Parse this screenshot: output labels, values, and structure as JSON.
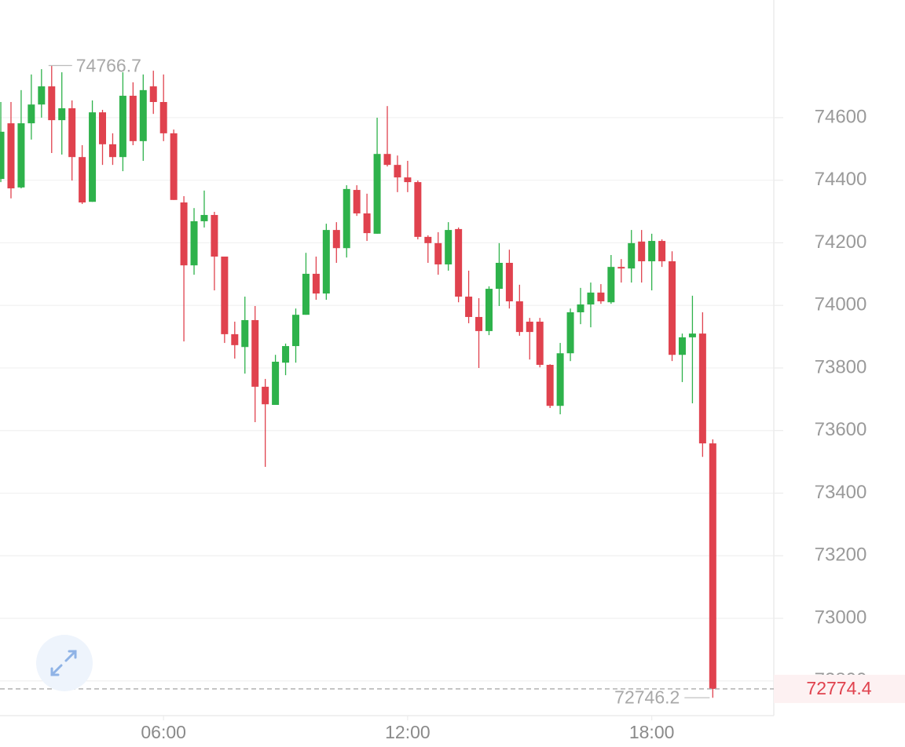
{
  "chart_data": {
    "type": "candlestick",
    "x": [
      2,
      2.25,
      2.5,
      2.75,
      3,
      3.25,
      3.5,
      3.75,
      4,
      4.25,
      4.5,
      4.75,
      5,
      5.25,
      5.5,
      5.75,
      6,
      6.25,
      6.5,
      6.75,
      7,
      7.25,
      7.5,
      7.75,
      8,
      8.25,
      8.5,
      8.75,
      9,
      9.25,
      9.5,
      9.75,
      10,
      10.25,
      10.5,
      10.75,
      11,
      11.25,
      11.5,
      11.75,
      12,
      12.25,
      12.5,
      12.75,
      13,
      13.25,
      13.5,
      13.75,
      14,
      14.25,
      14.5,
      14.75,
      15,
      15.25,
      15.5,
      15.75,
      16,
      16.25,
      16.5,
      16.75,
      17,
      17.25,
      17.5,
      17.75,
      18,
      18.25,
      18.5,
      18.75,
      19,
      19.25,
      19.5
    ],
    "open": [
      74404,
      74582,
      74377,
      74582,
      74642,
      74700,
      74592,
      74630,
      74474,
      74331,
      74617,
      74515,
      74474,
      74670,
      74525,
      74700,
      74650,
      74550,
      74329,
      74128,
      74269,
      74289,
      74156,
      73908,
      73867,
      73953,
      73740,
      73682,
      73817,
      73870,
      73970,
      74101,
      74038,
      74241,
      74183,
      74369,
      74294,
      74229,
      74484,
      74449,
      74409,
      74394,
      74219,
      74199,
      74131,
      74244,
      74028,
      73963,
      73918,
      74053,
      74136,
      74013,
      73948,
      73948,
      73810,
      73679,
      73847,
      73978,
      74003,
      74041,
      74010,
      74123,
      74118,
      74204,
      74141,
      74206,
      74141,
      73842,
      73898,
      73910,
      73559
    ],
    "high": [
      74650,
      74650,
      74688,
      74738,
      74755,
      74766.7,
      74745,
      74655,
      74512,
      74655,
      74625,
      74550,
      74745,
      74713,
      74738,
      74750,
      74738,
      74562,
      74349,
      74311,
      74367,
      74299,
      74156,
      73948,
      74028,
      73998,
      73765,
      73842,
      73878,
      73990,
      74168,
      74156,
      74261,
      74266,
      74384,
      74384,
      74357,
      74600,
      74637,
      74479,
      74462,
      74399,
      74224,
      74234,
      74266,
      74249,
      74111,
      74023,
      74061,
      74199,
      74178,
      74066,
      73960,
      73960,
      73812,
      73880,
      73990,
      74056,
      74073,
      74068,
      74161,
      74148,
      74241,
      74241,
      74229,
      74211,
      74173,
      73910,
      74031,
      73978,
      73572
    ],
    "low": [
      74394,
      74342,
      74374,
      74530,
      74600,
      74487,
      74482,
      74399,
      74324,
      74331,
      74449,
      74449,
      74429,
      74512,
      74462,
      74612,
      74525,
      74337,
      73885,
      74098,
      74249,
      74048,
      73880,
      73830,
      73782,
      73627,
      73484,
      73682,
      73777,
      73817,
      73970,
      74018,
      74018,
      74136,
      74153,
      74286,
      74206,
      74229,
      74444,
      74362,
      74362,
      74211,
      74136,
      74098,
      74111,
      74010,
      73943,
      73800,
      73905,
      73998,
      73990,
      73903,
      73827,
      73802,
      73672,
      73652,
      73822,
      73940,
      73930,
      74005,
      74005,
      74073,
      74073,
      74073,
      74048,
      74123,
      73822,
      73755,
      73687,
      73516,
      72746.2
    ],
    "close": [
      74555,
      74374,
      74582,
      74642,
      74700,
      74592,
      74630,
      74474,
      74329,
      74617,
      74515,
      74474,
      74670,
      74525,
      74688,
      74650,
      74550,
      74337,
      74128,
      74269,
      74289,
      74156,
      73908,
      73873,
      73953,
      73740,
      73684,
      73820,
      73870,
      73970,
      74101,
      74038,
      74241,
      74183,
      74372,
      74294,
      74231,
      74484,
      74449,
      74409,
      74394,
      74219,
      74199,
      74131,
      74241,
      74028,
      73963,
      73918,
      74053,
      74136,
      74013,
      73915,
      73915,
      73810,
      73679,
      73847,
      73978,
      74003,
      74041,
      74013,
      74123,
      74118,
      74199,
      74141,
      74206,
      74141,
      73842,
      73898,
      73910,
      73559,
      72774.4
    ],
    "up_color": "#2eb24b",
    "down_color": "#e0424e",
    "xlim": [
      1.98,
      21
    ],
    "xticks": [
      {
        "value": 6,
        "label": "06:00"
      },
      {
        "value": 12,
        "label": "12:00"
      },
      {
        "value": 18,
        "label": "18:00"
      }
    ],
    "ylim": [
      72689,
      74976
    ],
    "yticks": [
      72800,
      73000,
      73200,
      73400,
      73600,
      73800,
      74000,
      74200,
      74400,
      74600
    ],
    "grid": true
  }
}
